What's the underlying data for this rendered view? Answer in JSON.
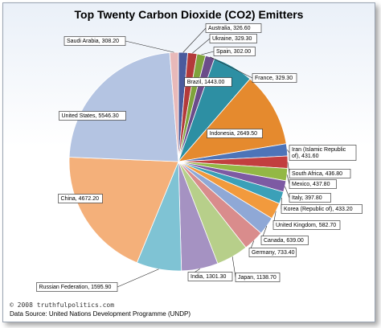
{
  "title": "Top Twenty Carbon Dioxide (CO2) Emitters",
  "copyright": "© 2008 truthfulpolitics.com",
  "source": "Data Source:  United Nations Development Programme (UNDP)",
  "chart_data": {
    "type": "pie",
    "title": "Top Twenty Carbon Dioxide (CO2) Emitters",
    "slices": [
      {
        "name": "Australia",
        "value": 326.6,
        "label": "Australia,  326.60",
        "color": "#4a5a9c"
      },
      {
        "name": "Ukraine",
        "value": 329.3,
        "label": "Ukraine, 329.30",
        "color": "#b33a3a"
      },
      {
        "name": "Spain",
        "value": 302.0,
        "label": "Spain, 302.00",
        "color": "#7fa33c"
      },
      {
        "name": "France",
        "value": 329.3,
        "label": "France, 329.30",
        "color": "#6b4c8a"
      },
      {
        "name": "Brazil",
        "value": 1443.0,
        "label": "Brazil, 1443.00",
        "color": "#2d8fa3"
      },
      {
        "name": "Indonesia",
        "value": 2649.5,
        "label": "Indonesia, 2649.50",
        "color": "#e58a2e"
      },
      {
        "name": "Iran (Islamic Republic of)",
        "value": 431.6,
        "label": "Iran (Islamic Republic of), 431.60",
        "color": "#4d74b8"
      },
      {
        "name": "South Africa",
        "value": 436.8,
        "label": "South Africa, 436.80",
        "color": "#c23f3f"
      },
      {
        "name": "Mexico",
        "value": 437.8,
        "label": "Mexico,  437.80",
        "color": "#93b845"
      },
      {
        "name": "Italy",
        "value": 397.8,
        "label": "Italy, 397.80",
        "color": "#7d5aa3"
      },
      {
        "name": "Korea (Republic of)",
        "value": 433.2,
        "label": "Korea (Republic of), 433.20",
        "color": "#3ba0b8"
      },
      {
        "name": "United Kingdom",
        "value": 582.7,
        "label": "United Kingdom, 582.70",
        "color": "#f29a3d"
      },
      {
        "name": "Canada",
        "value": 639.0,
        "label": "Canada,  639.00",
        "color": "#8fa8d6"
      },
      {
        "name": "Germany",
        "value": 733.4,
        "label": "Germany, 733.40",
        "color": "#d98c8c"
      },
      {
        "name": "Japan",
        "value": 1138.7,
        "label": "Japan, 1138.70",
        "color": "#b7cf8a"
      },
      {
        "name": "India",
        "value": 1301.3,
        "label": "India, 1301.30",
        "color": "#a592c2"
      },
      {
        "name": "Russian Federation",
        "value": 1595.9,
        "label": "Russian Federation, 1595.90",
        "color": "#7fc3d4"
      },
      {
        "name": "China",
        "value": 4672.2,
        "label": "China, 4672.20",
        "color": "#f4b07a"
      },
      {
        "name": "United States",
        "value": 5546.3,
        "label": "United States, 5546.30",
        "color": "#b4c4e2"
      },
      {
        "name": "Saudi Arabia",
        "value": 308.2,
        "label": "Saudi Arabia, 308.20",
        "color": "#e8b9b9"
      }
    ]
  }
}
